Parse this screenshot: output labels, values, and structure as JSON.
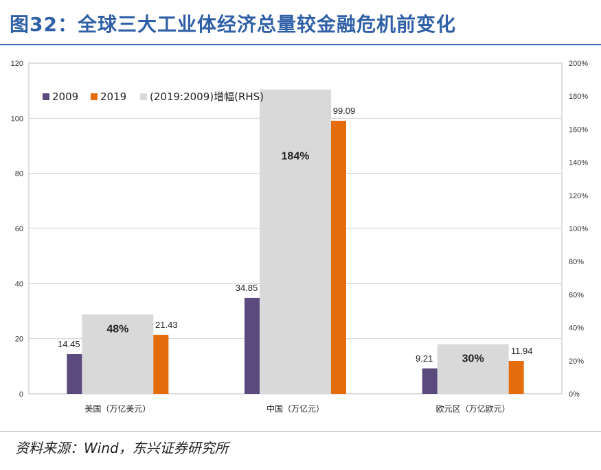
{
  "title": "图32：全球三大工业体经济总量较金融危机前变化",
  "source": "资料来源：Wind，东兴证券研究所",
  "colors": {
    "s2009": "#5b4a7d",
    "s2019": "#e46c0a",
    "growth": "#d9d9d9",
    "title": "#2f5fa6"
  },
  "chart_data": {
    "type": "bar",
    "categories": [
      "美国（万亿美元）",
      "中国（万亿元）",
      "欧元区（万亿欧元）"
    ],
    "series": [
      {
        "name": "2009",
        "axis": "left",
        "values": [
          14.45,
          34.85,
          9.21
        ],
        "labels": [
          "14.45",
          "34.85",
          "9.21"
        ]
      },
      {
        "name": "2019",
        "axis": "left",
        "values": [
          21.43,
          99.09,
          11.94
        ],
        "labels": [
          "21.43",
          "99.09",
          "11.94"
        ]
      },
      {
        "name": "(2019:2009)增幅(RHS)",
        "axis": "right",
        "values": [
          48,
          184,
          30
        ],
        "labels": [
          "48%",
          "184%",
          "30%"
        ]
      }
    ],
    "left_axis": {
      "min": 0,
      "max": 120,
      "ticks": [
        "0",
        "20",
        "40",
        "60",
        "80",
        "100",
        "120"
      ]
    },
    "right_axis": {
      "min": 0,
      "max": 200,
      "ticks": [
        "0%",
        "20%",
        "40%",
        "60%",
        "80%",
        "100%",
        "120%",
        "140%",
        "160%",
        "180%",
        "200%"
      ]
    },
    "grid": true,
    "legend": "top-left"
  }
}
